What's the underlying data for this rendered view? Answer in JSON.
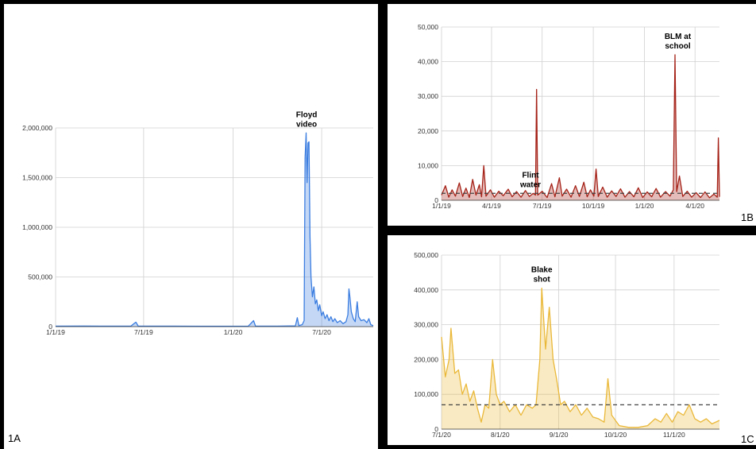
{
  "panels": {
    "a": {
      "label": "1A"
    },
    "b": {
      "label": "1B"
    },
    "c": {
      "label": "1C"
    }
  },
  "colors": {
    "a": "#3b7de0",
    "b": "#a52218",
    "c": "#eab838",
    "baseline": "#444444",
    "grid": "#d0d0d0"
  },
  "chart_data": [
    {
      "id": "1A",
      "type": "area",
      "xlim": [
        "2019-01-01",
        "2020-10-15"
      ],
      "ylim": [
        0,
        2000000
      ],
      "grid": true,
      "x_ticks": [
        {
          "date": "2019-01-01",
          "label": "1/1/19"
        },
        {
          "date": "2019-07-01",
          "label": "7/1/19"
        },
        {
          "date": "2020-01-01",
          "label": "1/1/20"
        },
        {
          "date": "2020-07-01",
          "label": "7/1/20"
        }
      ],
      "y_ticks": [
        {
          "value": 0,
          "label": "0"
        },
        {
          "value": 500000,
          "label": "500,000"
        },
        {
          "value": 1000000,
          "label": "1,000,000"
        },
        {
          "value": 1500000,
          "label": "1,500,000"
        },
        {
          "value": 2000000,
          "label": "2,000,000"
        }
      ],
      "series": [
        {
          "points": [
            [
              "2019-01-01",
              5000
            ],
            [
              "2019-03-01",
              6000
            ],
            [
              "2019-05-01",
              5000
            ],
            [
              "2019-06-05",
              6000
            ],
            [
              "2019-06-15",
              45000
            ],
            [
              "2019-06-20",
              6000
            ],
            [
              "2019-09-01",
              5000
            ],
            [
              "2019-12-01",
              4000
            ],
            [
              "2020-02-01",
              5000
            ],
            [
              "2020-02-12",
              60000
            ],
            [
              "2020-02-16",
              5000
            ],
            [
              "2020-04-01",
              5000
            ],
            [
              "2020-05-08",
              8000
            ],
            [
              "2020-05-12",
              90000
            ],
            [
              "2020-05-15",
              10000
            ],
            [
              "2020-05-22",
              20000
            ],
            [
              "2020-05-26",
              60000
            ],
            [
              "2020-05-28",
              1700000
            ],
            [
              "2020-05-30",
              1950000
            ],
            [
              "2020-06-01",
              1450000
            ],
            [
              "2020-06-03",
              1850000
            ],
            [
              "2020-06-05",
              1860000
            ],
            [
              "2020-06-07",
              900000
            ],
            [
              "2020-06-09",
              500000
            ],
            [
              "2020-06-12",
              300000
            ],
            [
              "2020-06-15",
              400000
            ],
            [
              "2020-06-18",
              230000
            ],
            [
              "2020-06-21",
              270000
            ],
            [
              "2020-06-24",
              160000
            ],
            [
              "2020-06-27",
              220000
            ],
            [
              "2020-07-01",
              110000
            ],
            [
              "2020-07-04",
              150000
            ],
            [
              "2020-07-08",
              80000
            ],
            [
              "2020-07-12",
              120000
            ],
            [
              "2020-07-16",
              60000
            ],
            [
              "2020-07-20",
              100000
            ],
            [
              "2020-07-24",
              50000
            ],
            [
              "2020-07-28",
              80000
            ],
            [
              "2020-08-02",
              40000
            ],
            [
              "2020-08-08",
              60000
            ],
            [
              "2020-08-14",
              30000
            ],
            [
              "2020-08-20",
              50000
            ],
            [
              "2020-08-24",
              120000
            ],
            [
              "2020-08-26",
              380000
            ],
            [
              "2020-08-28",
              300000
            ],
            [
              "2020-08-31",
              150000
            ],
            [
              "2020-09-04",
              80000
            ],
            [
              "2020-09-08",
              50000
            ],
            [
              "2020-09-12",
              250000
            ],
            [
              "2020-09-15",
              100000
            ],
            [
              "2020-09-20",
              60000
            ],
            [
              "2020-09-26",
              70000
            ],
            [
              "2020-10-02",
              40000
            ],
            [
              "2020-10-06",
              80000
            ],
            [
              "2020-10-10",
              20000
            ],
            [
              "2020-10-15",
              10000
            ]
          ]
        }
      ],
      "annotations": [
        {
          "lines": [
            "Floyd",
            "video"
          ],
          "x": "2020-05-31"
        }
      ]
    },
    {
      "id": "1B",
      "type": "area",
      "xlim": [
        "2019-01-01",
        "2020-05-15"
      ],
      "ylim": [
        0,
        50000
      ],
      "grid": true,
      "baseline_value": 2000,
      "x_ticks": [
        {
          "date": "2019-01-01",
          "label": "1/1/19"
        },
        {
          "date": "2019-04-01",
          "label": "4/1/19"
        },
        {
          "date": "2019-07-01",
          "label": "7/1/19"
        },
        {
          "date": "2019-10-01",
          "label": "10/1/19"
        },
        {
          "date": "2020-01-01",
          "label": "1/1/20"
        },
        {
          "date": "2020-04-01",
          "label": "4/1/20"
        }
      ],
      "y_ticks": [
        {
          "value": 0,
          "label": "0"
        },
        {
          "value": 10000,
          "label": "10,000"
        },
        {
          "value": 20000,
          "label": "20,000"
        },
        {
          "value": 30000,
          "label": "30,000"
        },
        {
          "value": 40000,
          "label": "40,000"
        },
        {
          "value": 50000,
          "label": "50,000"
        }
      ],
      "series": [
        {
          "points": [
            [
              "2019-01-01",
              1500
            ],
            [
              "2019-01-08",
              4200
            ],
            [
              "2019-01-14",
              900
            ],
            [
              "2019-01-20",
              3000
            ],
            [
              "2019-01-26",
              1200
            ],
            [
              "2019-02-02",
              5000
            ],
            [
              "2019-02-08",
              1100
            ],
            [
              "2019-02-14",
              3500
            ],
            [
              "2019-02-20",
              800
            ],
            [
              "2019-02-26",
              6000
            ],
            [
              "2019-03-04",
              1500
            ],
            [
              "2019-03-10",
              4500
            ],
            [
              "2019-03-14",
              1000
            ],
            [
              "2019-03-18",
              10000
            ],
            [
              "2019-03-22",
              1200
            ],
            [
              "2019-03-30",
              3000
            ],
            [
              "2019-04-06",
              900
            ],
            [
              "2019-04-14",
              2600
            ],
            [
              "2019-04-22",
              1300
            ],
            [
              "2019-05-01",
              3200
            ],
            [
              "2019-05-08",
              1000
            ],
            [
              "2019-05-16",
              2500
            ],
            [
              "2019-05-24",
              900
            ],
            [
              "2019-06-01",
              2800
            ],
            [
              "2019-06-08",
              1100
            ],
            [
              "2019-06-15",
              2000
            ],
            [
              "2019-06-19",
              1500
            ],
            [
              "2019-06-21",
              32000
            ],
            [
              "2019-06-23",
              1500
            ],
            [
              "2019-07-01",
              2600
            ],
            [
              "2019-07-10",
              800
            ],
            [
              "2019-07-18",
              4800
            ],
            [
              "2019-07-24",
              1000
            ],
            [
              "2019-08-01",
              6500
            ],
            [
              "2019-08-06",
              1200
            ],
            [
              "2019-08-14",
              3200
            ],
            [
              "2019-08-22",
              900
            ],
            [
              "2019-08-30",
              4200
            ],
            [
              "2019-09-06",
              1100
            ],
            [
              "2019-09-14",
              5200
            ],
            [
              "2019-09-20",
              1000
            ],
            [
              "2019-09-26",
              3000
            ],
            [
              "2019-10-02",
              1200
            ],
            [
              "2019-10-06",
              9000
            ],
            [
              "2019-10-10",
              1100
            ],
            [
              "2019-10-18",
              3800
            ],
            [
              "2019-10-26",
              900
            ],
            [
              "2019-11-03",
              2700
            ],
            [
              "2019-11-11",
              1100
            ],
            [
              "2019-11-19",
              3300
            ],
            [
              "2019-11-27",
              900
            ],
            [
              "2019-12-05",
              2500
            ],
            [
              "2019-12-13",
              1000
            ],
            [
              "2019-12-21",
              3600
            ],
            [
              "2019-12-29",
              800
            ],
            [
              "2020-01-06",
              2400
            ],
            [
              "2020-01-14",
              1000
            ],
            [
              "2020-01-22",
              3400
            ],
            [
              "2020-01-30",
              900
            ],
            [
              "2020-02-08",
              2500
            ],
            [
              "2020-02-16",
              1200
            ],
            [
              "2020-02-22",
              3000
            ],
            [
              "2020-02-25",
              42000
            ],
            [
              "2020-02-28",
              2500
            ],
            [
              "2020-03-04",
              7000
            ],
            [
              "2020-03-10",
              1100
            ],
            [
              "2020-03-18",
              2600
            ],
            [
              "2020-03-26",
              900
            ],
            [
              "2020-04-03",
              2200
            ],
            [
              "2020-04-11",
              800
            ],
            [
              "2020-04-19",
              2400
            ],
            [
              "2020-04-27",
              700
            ],
            [
              "2020-05-05",
              1800
            ],
            [
              "2020-05-11",
              900
            ],
            [
              "2020-05-13",
              18000
            ],
            [
              "2020-05-15",
              1000
            ]
          ]
        }
      ],
      "annotations": [
        {
          "lines": [
            "Flint",
            "water"
          ],
          "x": "2019-06-10"
        },
        {
          "lines": [
            "BLM at",
            "school"
          ],
          "x": "2020-03-01"
        }
      ]
    },
    {
      "id": "1C",
      "type": "area",
      "xlim": [
        "2020-07-01",
        "2020-11-25"
      ],
      "ylim": [
        0,
        500000
      ],
      "grid": true,
      "baseline_value": 70000,
      "x_ticks": [
        {
          "date": "2020-07-01",
          "label": "7/1/20"
        },
        {
          "date": "2020-08-01",
          "label": "8/1/20"
        },
        {
          "date": "2020-09-01",
          "label": "9/1/20"
        },
        {
          "date": "2020-10-01",
          "label": "10/1/20"
        },
        {
          "date": "2020-11-01",
          "label": "11/1/20"
        }
      ],
      "y_ticks": [
        {
          "value": 0,
          "label": "0"
        },
        {
          "value": 100000,
          "label": "100,000"
        },
        {
          "value": 200000,
          "label": "200,000"
        },
        {
          "value": 300000,
          "label": "300,000"
        },
        {
          "value": 400000,
          "label": "400,000"
        },
        {
          "value": 500000,
          "label": "500,000"
        }
      ],
      "series": [
        {
          "points": [
            [
              "2020-07-01",
              265000
            ],
            [
              "2020-07-03",
              150000
            ],
            [
              "2020-07-05",
              200000
            ],
            [
              "2020-07-06",
              290000
            ],
            [
              "2020-07-08",
              160000
            ],
            [
              "2020-07-10",
              170000
            ],
            [
              "2020-07-12",
              100000
            ],
            [
              "2020-07-14",
              130000
            ],
            [
              "2020-07-16",
              80000
            ],
            [
              "2020-07-18",
              110000
            ],
            [
              "2020-07-20",
              60000
            ],
            [
              "2020-07-22",
              20000
            ],
            [
              "2020-07-24",
              70000
            ],
            [
              "2020-07-26",
              60000
            ],
            [
              "2020-07-28",
              200000
            ],
            [
              "2020-07-30",
              100000
            ],
            [
              "2020-08-01",
              70000
            ],
            [
              "2020-08-03",
              80000
            ],
            [
              "2020-08-06",
              50000
            ],
            [
              "2020-08-09",
              70000
            ],
            [
              "2020-08-12",
              40000
            ],
            [
              "2020-08-15",
              70000
            ],
            [
              "2020-08-18",
              60000
            ],
            [
              "2020-08-20",
              70000
            ],
            [
              "2020-08-22",
              200000
            ],
            [
              "2020-08-23",
              405000
            ],
            [
              "2020-08-25",
              230000
            ],
            [
              "2020-08-27",
              350000
            ],
            [
              "2020-08-29",
              200000
            ],
            [
              "2020-08-31",
              140000
            ],
            [
              "2020-09-02",
              70000
            ],
            [
              "2020-09-04",
              80000
            ],
            [
              "2020-09-07",
              50000
            ],
            [
              "2020-09-10",
              70000
            ],
            [
              "2020-09-13",
              40000
            ],
            [
              "2020-09-16",
              60000
            ],
            [
              "2020-09-19",
              35000
            ],
            [
              "2020-09-22",
              30000
            ],
            [
              "2020-09-25",
              20000
            ],
            [
              "2020-09-27",
              145000
            ],
            [
              "2020-09-29",
              40000
            ],
            [
              "2020-10-03",
              10000
            ],
            [
              "2020-10-08",
              5000
            ],
            [
              "2020-10-13",
              5000
            ],
            [
              "2020-10-18",
              10000
            ],
            [
              "2020-10-22",
              30000
            ],
            [
              "2020-10-25",
              20000
            ],
            [
              "2020-10-28",
              45000
            ],
            [
              "2020-10-31",
              20000
            ],
            [
              "2020-11-03",
              50000
            ],
            [
              "2020-11-06",
              40000
            ],
            [
              "2020-11-09",
              70000
            ],
            [
              "2020-11-12",
              30000
            ],
            [
              "2020-11-15",
              20000
            ],
            [
              "2020-11-18",
              30000
            ],
            [
              "2020-11-21",
              15000
            ],
            [
              "2020-11-25",
              25000
            ]
          ]
        }
      ],
      "annotations": [
        {
          "lines": [
            "Blake",
            "shot"
          ],
          "x": "2020-08-23"
        }
      ]
    }
  ]
}
